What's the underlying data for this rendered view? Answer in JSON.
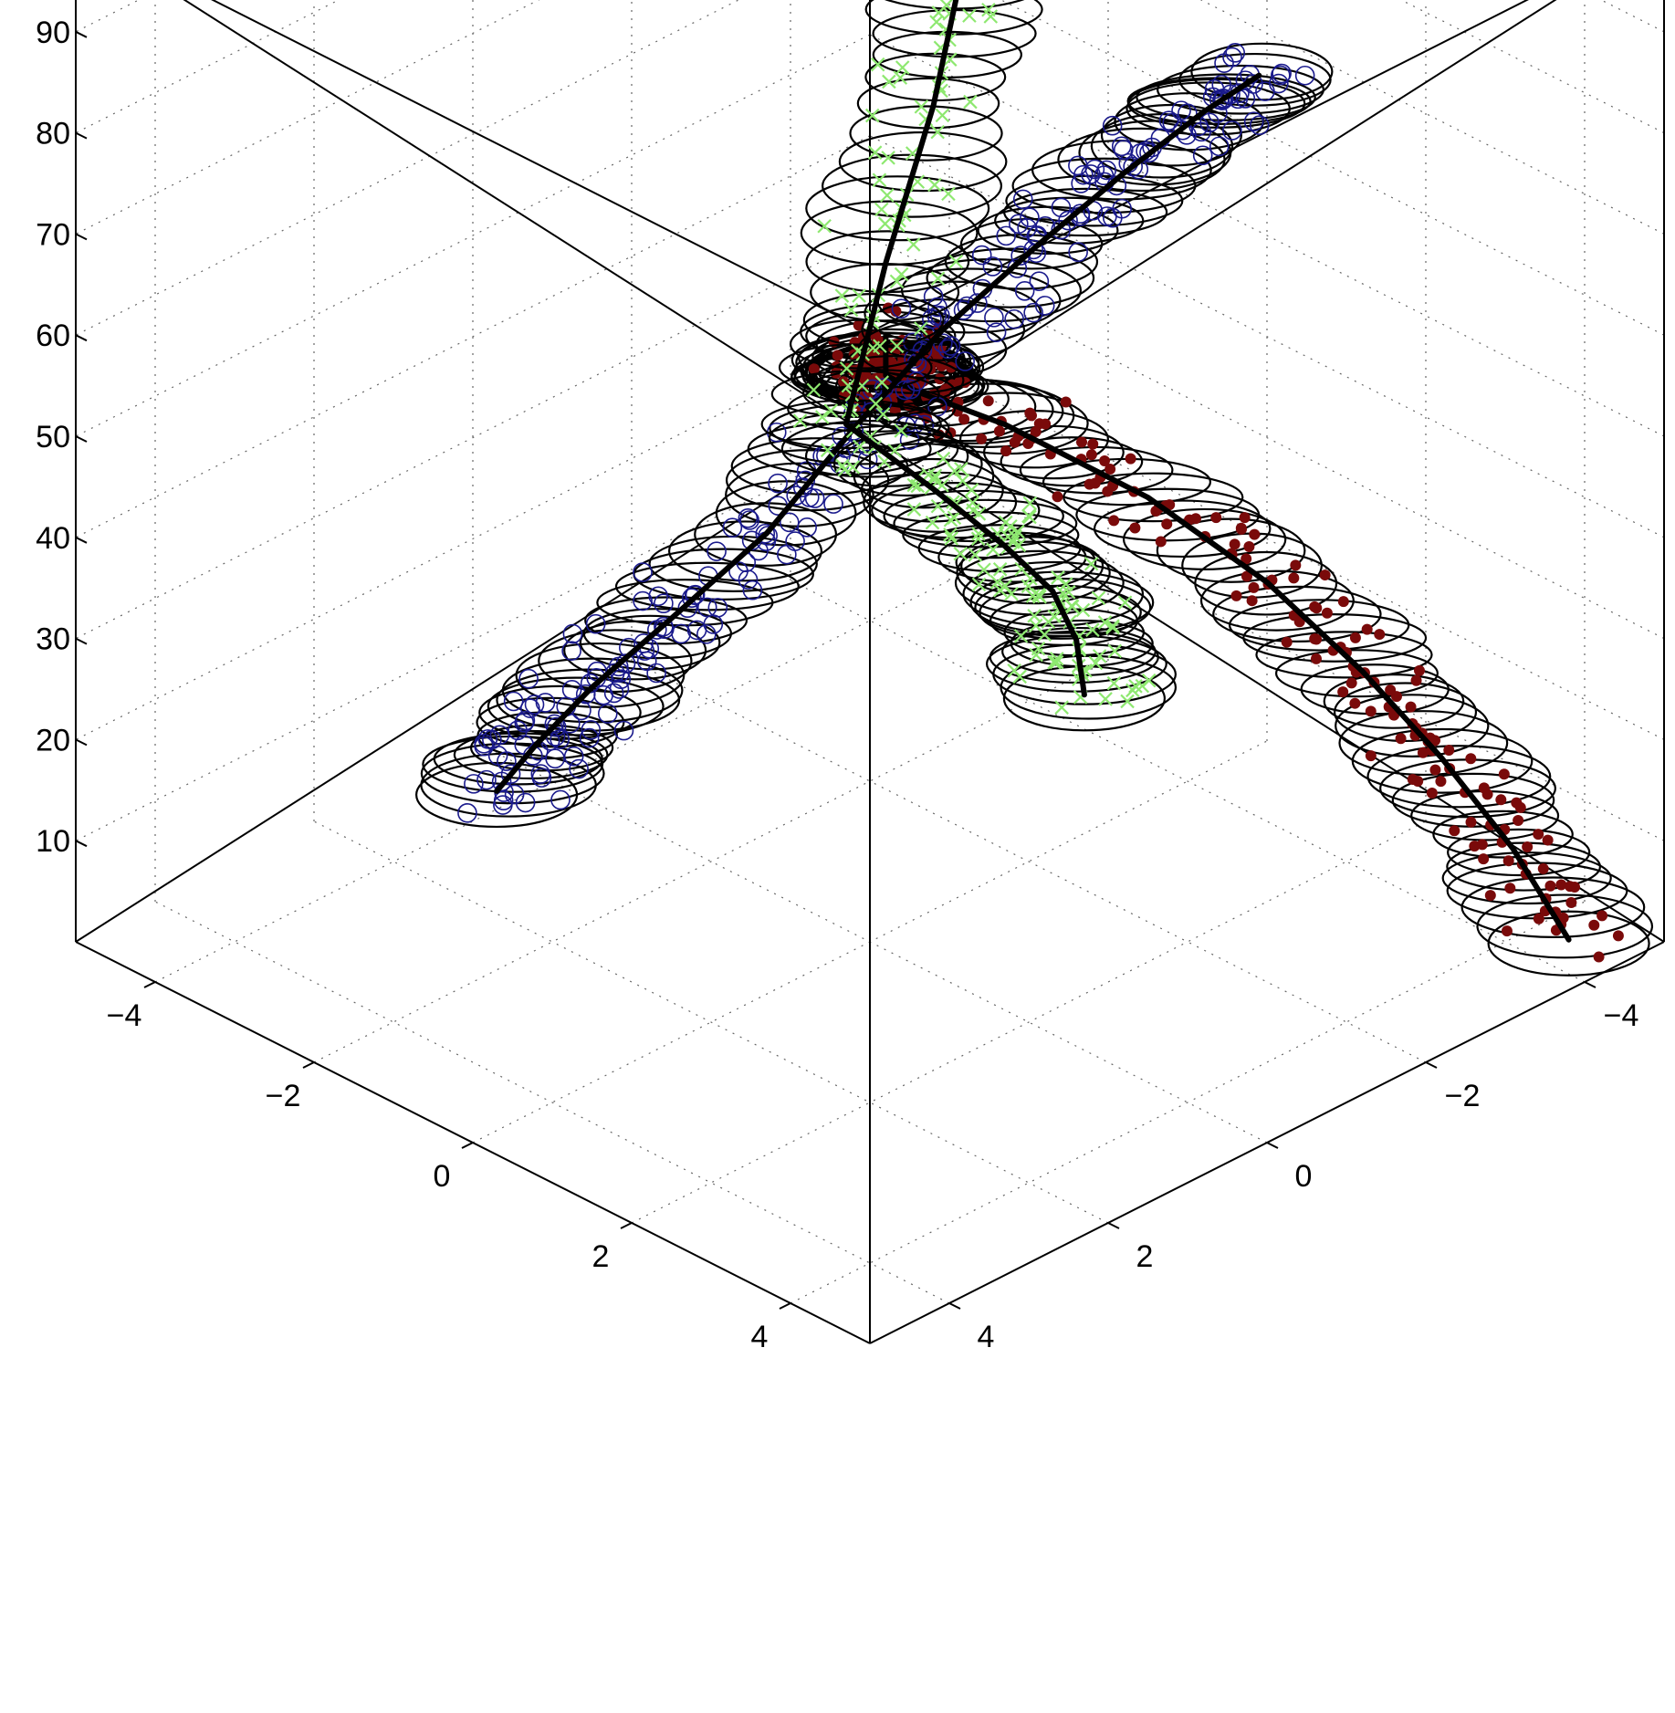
{
  "chart_data": {
    "type": "scatter",
    "dimensions": "3d",
    "grid": true,
    "z_ticks": [
      "10",
      "20",
      "30",
      "40",
      "50",
      "60",
      "70",
      "80",
      "90"
    ],
    "x_ticks": [
      "4",
      "2",
      "0",
      "−2",
      "−4"
    ],
    "y_ticks": [
      "−4",
      "−2",
      "0",
      "2",
      "4"
    ],
    "xlim": [
      -5,
      5
    ],
    "ylim": [
      -5,
      5
    ],
    "zlim": [
      0,
      100
    ],
    "series": [
      {
        "marker": "filled-dot",
        "color": "#7a0a0a",
        "tube_color": "#000000",
        "centerline": [
          {
            "x": 4.5,
            "y": -4.3,
            "z": 1
          },
          {
            "x": 3.9,
            "y": -4.2,
            "z": 8
          },
          {
            "x": 3.2,
            "y": -4.0,
            "z": 15
          },
          {
            "x": 2.5,
            "y": -3.7,
            "z": 22
          },
          {
            "x": 1.8,
            "y": -3.2,
            "z": 30
          },
          {
            "x": 1.0,
            "y": -2.5,
            "z": 38
          },
          {
            "x": 0.2,
            "y": -1.5,
            "z": 46
          },
          {
            "x": 0.0,
            "y": -0.6,
            "z": 52
          },
          {
            "x": 0.6,
            "y": 0.4,
            "z": 60
          },
          {
            "x": 1.6,
            "y": 1.4,
            "z": 68
          },
          {
            "x": 2.6,
            "y": 2.4,
            "z": 76
          },
          {
            "x": 3.6,
            "y": 3.4,
            "z": 85
          },
          {
            "x": 4.5,
            "y": 4.3,
            "z": 95
          }
        ]
      },
      {
        "marker": "open-circle",
        "color": "#1a1a8c",
        "tube_color": "#000000",
        "centerline": [
          {
            "x": -4.1,
            "y": 0.6,
            "z": 1
          },
          {
            "x": -3.3,
            "y": 0.9,
            "z": 10
          },
          {
            "x": -2.4,
            "y": 1.1,
            "z": 20
          },
          {
            "x": -1.5,
            "y": 1.0,
            "z": 30
          },
          {
            "x": -0.7,
            "y": 0.6,
            "z": 40
          },
          {
            "x": -0.2,
            "y": 0.0,
            "z": 50
          },
          {
            "x": 0.4,
            "y": -0.5,
            "z": 60
          },
          {
            "x": 1.2,
            "y": -0.9,
            "z": 70
          },
          {
            "x": 2.1,
            "y": -1.1,
            "z": 80
          },
          {
            "x": 3.1,
            "y": -1.1,
            "z": 90
          },
          {
            "x": 4.0,
            "y": -0.9,
            "z": 98
          }
        ]
      },
      {
        "marker": "cross",
        "color": "#8ee870",
        "tube_color": "#000000",
        "centerline": [
          {
            "x": -1.6,
            "y": -4.3,
            "z": 1
          },
          {
            "x": -1.2,
            "y": -3.8,
            "z": 10
          },
          {
            "x": -0.7,
            "y": -3.0,
            "z": 20
          },
          {
            "x": -0.3,
            "y": -2.0,
            "z": 30
          },
          {
            "x": -0.2,
            "y": -1.0,
            "z": 40
          },
          {
            "x": -0.3,
            "y": 0.0,
            "z": 50
          },
          {
            "x": -0.8,
            "y": -1.0,
            "z": 60
          },
          {
            "x": -1.2,
            "y": -2.0,
            "z": 70
          },
          {
            "x": -1.6,
            "y": -2.8,
            "z": 80
          },
          {
            "x": -2.0,
            "y": -3.5,
            "z": 90
          },
          {
            "x": -2.3,
            "y": -4.1,
            "z": 98
          }
        ]
      }
    ]
  }
}
